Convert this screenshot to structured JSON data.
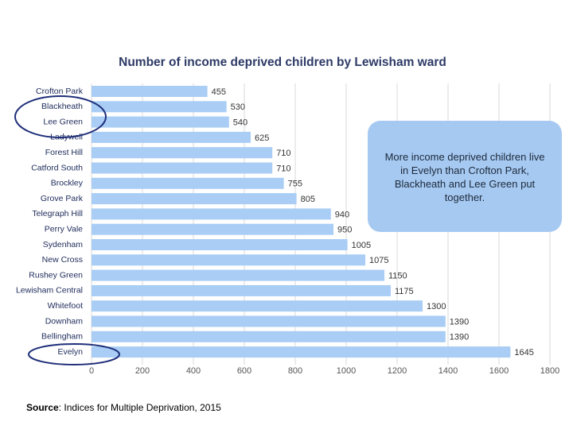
{
  "chart_data": {
    "type": "bar",
    "orientation": "horizontal",
    "title": "Number of income deprived children by Lewisham ward",
    "categories": [
      "Crofton Park",
      "Blackheath",
      "Lee Green",
      "Ladywell",
      "Forest Hill",
      "Catford South",
      "Brockley",
      "Grove Park",
      "Telegraph Hill",
      "Perry Vale",
      "Sydenham",
      "New Cross",
      "Rushey Green",
      "Lewisham Central",
      "Whitefoot",
      "Downham",
      "Bellingham",
      "Evelyn"
    ],
    "values": [
      455,
      530,
      540,
      625,
      710,
      710,
      755,
      805,
      940,
      950,
      1005,
      1075,
      1150,
      1175,
      1300,
      1390,
      1390,
      1645
    ],
    "color": "#a9cdf5",
    "xlim": [
      0,
      1800
    ],
    "xticks": [
      0,
      200,
      400,
      600,
      800,
      1000,
      1200,
      1400,
      1600,
      1800
    ],
    "grid": true,
    "annotation": "More income deprived children live in Evelyn than Crofton Park, Blackheath and Lee Green put together.",
    "source_label": "Source",
    "source_text": ": Indices for Multiple Deprivation, 2015"
  }
}
